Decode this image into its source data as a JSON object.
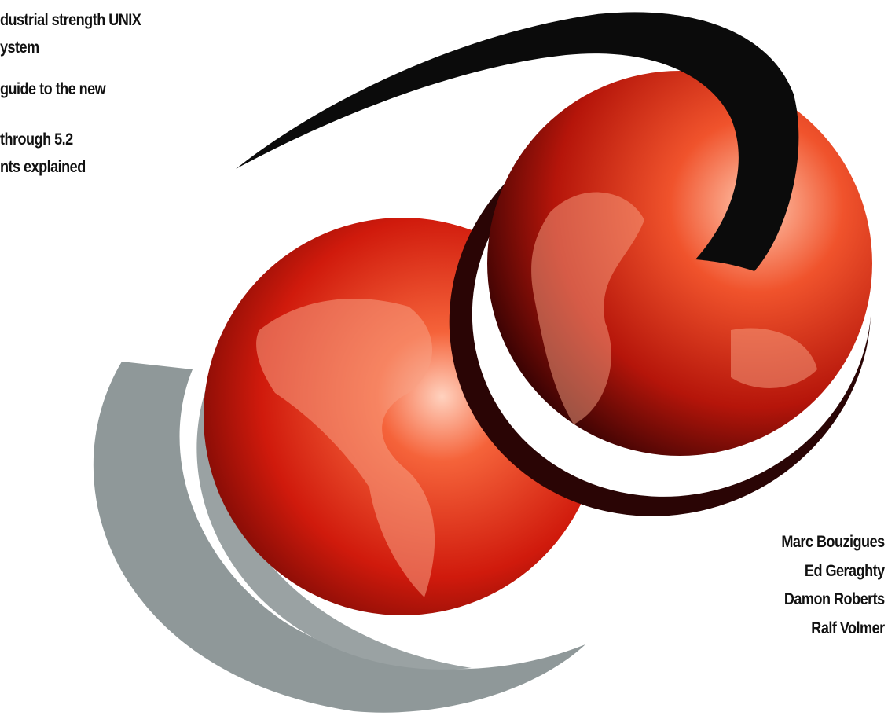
{
  "highlights": [
    [
      "dustrial strength UNIX",
      "ystem"
    ],
    [
      "guide to the new"
    ],
    [
      "through 5.2",
      "nts explained"
    ]
  ],
  "authors": [
    "Marc Bouzigues",
    "Ed Geraghty",
    "Damon Roberts",
    "Ralf Volmer"
  ]
}
